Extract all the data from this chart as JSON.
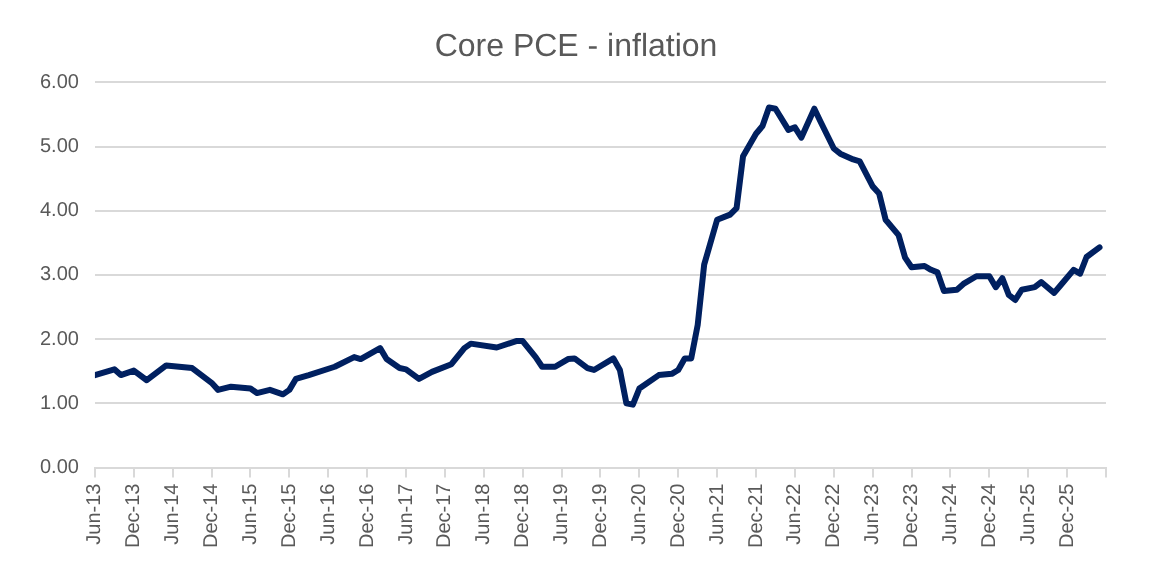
{
  "chart_data": {
    "type": "line",
    "title": "Core PCE - inflation",
    "x": [
      "2013-06",
      "2013-09",
      "2013-10",
      "2013-12",
      "2014-02",
      "2014-05",
      "2014-09",
      "2014-12",
      "2015-01",
      "2015-03",
      "2015-06",
      "2015-07",
      "2015-09",
      "2015-11",
      "2015-12",
      "2016-01",
      "2016-03",
      "2016-07",
      "2016-10",
      "2016-11",
      "2017-02",
      "2017-03",
      "2017-05",
      "2017-06",
      "2017-08",
      "2017-10",
      "2018-01",
      "2018-03",
      "2018-04",
      "2018-08",
      "2018-11",
      "2018-12",
      "2019-02",
      "2019-03",
      "2019-05",
      "2019-07",
      "2019-08",
      "2019-10",
      "2019-11",
      "2020-02",
      "2020-03",
      "2020-04",
      "2020-05",
      "2020-06",
      "2020-09",
      "2020-11",
      "2020-12",
      "2021-01",
      "2021-02",
      "2021-03",
      "2021-04",
      "2021-06",
      "2021-08",
      "2021-09",
      "2021-10",
      "2021-12",
      "2022-01",
      "2022-02",
      "2022-03",
      "2022-05",
      "2022-06",
      "2022-07",
      "2022-09",
      "2022-10",
      "2022-12",
      "2023-01",
      "2023-03",
      "2023-04",
      "2023-06",
      "2023-07",
      "2023-08",
      "2023-10",
      "2023-11",
      "2023-12",
      "2024-02",
      "2024-03",
      "2024-04",
      "2024-05",
      "2024-07",
      "2024-08",
      "2024-10",
      "2024-12",
      "2025-01",
      "2025-02",
      "2025-03",
      "2025-04",
      "2025-05",
      "2025-07",
      "2025-08",
      "2025-10",
      "2025-11",
      "2026-01",
      "2026-02",
      "2026-03",
      "2026-05"
    ],
    "series": [
      {
        "color": "#002060",
        "values": [
          1.44,
          1.53,
          1.44,
          1.51,
          1.36,
          1.59,
          1.55,
          1.32,
          1.21,
          1.26,
          1.23,
          1.16,
          1.21,
          1.14,
          1.21,
          1.38,
          1.44,
          1.57,
          1.72,
          1.69,
          1.86,
          1.69,
          1.55,
          1.53,
          1.38,
          1.49,
          1.61,
          1.86,
          1.93,
          1.87,
          1.97,
          1.97,
          1.72,
          1.57,
          1.57,
          1.69,
          1.7,
          1.55,
          1.52,
          1.7,
          1.52,
          1.0,
          0.98,
          1.23,
          1.44,
          1.46,
          1.52,
          1.7,
          1.7,
          2.22,
          3.16,
          3.86,
          3.94,
          4.04,
          4.85,
          5.2,
          5.32,
          5.61,
          5.59,
          5.26,
          5.3,
          5.14,
          5.59,
          5.38,
          4.97,
          4.89,
          4.8,
          4.77,
          4.38,
          4.27,
          3.86,
          3.62,
          3.27,
          3.12,
          3.14,
          3.08,
          3.04,
          2.75,
          2.77,
          2.86,
          2.98,
          2.98,
          2.81,
          2.95,
          2.69,
          2.61,
          2.77,
          2.81,
          2.89,
          2.72,
          2.84,
          3.08,
          3.02,
          3.28,
          3.43
        ]
      }
    ],
    "xlim": [
      "2013-06",
      "2026-06"
    ],
    "xticks": [
      {
        "value": "2013-06",
        "label": "Jun-13"
      },
      {
        "value": "2013-12",
        "label": "Dec-13"
      },
      {
        "value": "2014-06",
        "label": "Jun-14"
      },
      {
        "value": "2014-12",
        "label": "Dec-14"
      },
      {
        "value": "2015-06",
        "label": "Jun-15"
      },
      {
        "value": "2015-12",
        "label": "Dec-15"
      },
      {
        "value": "2016-06",
        "label": "Jun-16"
      },
      {
        "value": "2016-12",
        "label": "Dec-16"
      },
      {
        "value": "2017-06",
        "label": "Jun-17"
      },
      {
        "value": "2017-12",
        "label": "Dec-17"
      },
      {
        "value": "2018-06",
        "label": "Jun-18"
      },
      {
        "value": "2018-12",
        "label": "Dec-18"
      },
      {
        "value": "2019-06",
        "label": "Jun-19"
      },
      {
        "value": "2019-12",
        "label": "Dec-19"
      },
      {
        "value": "2020-06",
        "label": "Jun-20"
      },
      {
        "value": "2020-12",
        "label": "Dec-20"
      },
      {
        "value": "2021-06",
        "label": "Jun-21"
      },
      {
        "value": "2021-12",
        "label": "Dec-21"
      },
      {
        "value": "2022-06",
        "label": "Jun-22"
      },
      {
        "value": "2022-12",
        "label": "Dec-22"
      },
      {
        "value": "2023-06",
        "label": "Jun-23"
      },
      {
        "value": "2023-12",
        "label": "Dec-23"
      },
      {
        "value": "2024-06",
        "label": "Jun-24"
      },
      {
        "value": "2024-12",
        "label": "Dec-24"
      },
      {
        "value": "2025-06",
        "label": "Jun-25"
      },
      {
        "value": "2025-12",
        "label": "Dec-25"
      },
      {
        "value": "2026-06",
        "label": null
      }
    ],
    "ylim": [
      0,
      6
    ],
    "yticks": [
      {
        "value": 0,
        "label": "0.00"
      },
      {
        "value": 1,
        "label": "1.00"
      },
      {
        "value": 2,
        "label": "2.00"
      },
      {
        "value": 3,
        "label": "3.00"
      },
      {
        "value": 4,
        "label": "4.00"
      },
      {
        "value": 5,
        "label": "5.00"
      },
      {
        "value": 6,
        "label": "6.00"
      }
    ],
    "grid": "y",
    "legend": false,
    "marker": "none",
    "line_style": "solid"
  }
}
